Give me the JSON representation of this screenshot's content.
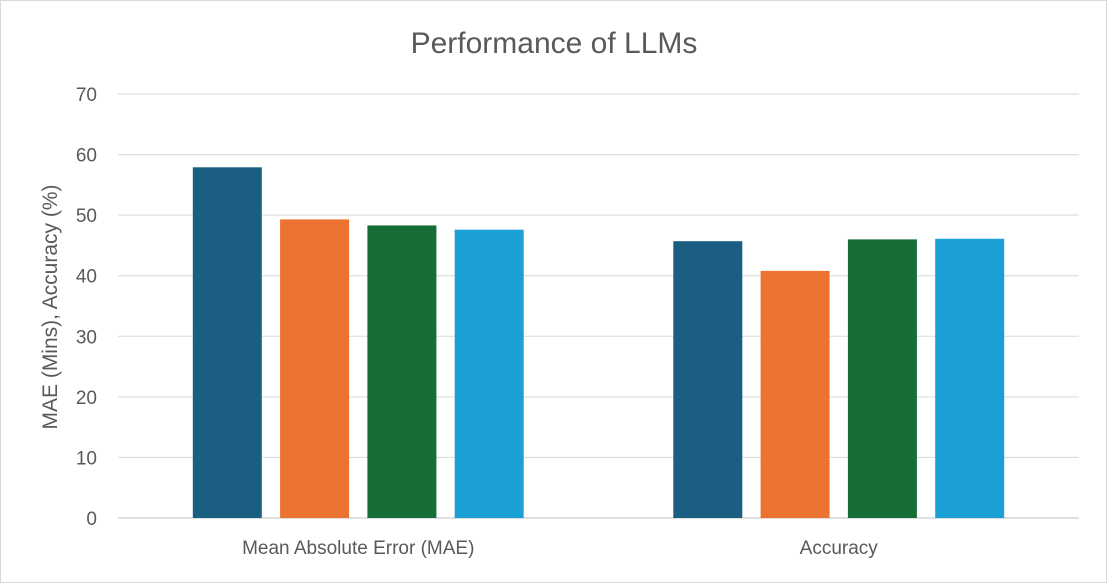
{
  "chart_data": {
    "type": "bar",
    "title": "Performance of LLMs",
    "xlabel": "",
    "ylabel": "MAE (Mins), Accuracy (%)",
    "categories": [
      "Mean Absolute Error (MAE)",
      "Accuracy"
    ],
    "series": [
      {
        "color": "#1a5f82",
        "values": [
          57.9,
          45.7
        ]
      },
      {
        "color": "#ec7232",
        "values": [
          49.3,
          40.8
        ]
      },
      {
        "color": "#166d38",
        "values": [
          48.3,
          46.0
        ]
      },
      {
        "color": "#1ba0d6",
        "values": [
          47.6,
          46.1
        ]
      }
    ],
    "ylim": [
      0,
      70
    ],
    "yticks": [
      0,
      10,
      20,
      30,
      40,
      50,
      60,
      70
    ],
    "grid": true,
    "legend": "none"
  }
}
